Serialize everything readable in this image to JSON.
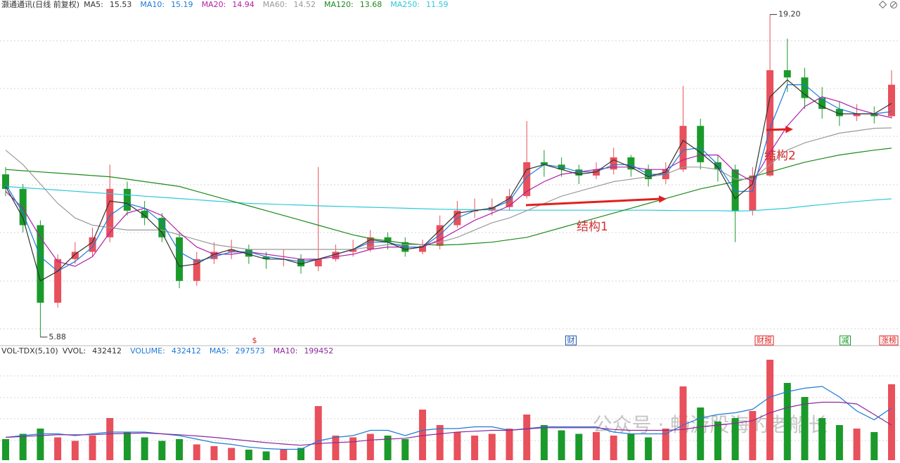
{
  "chart_data": {
    "type": "candlestick",
    "title": "灏通通讯(日线 前复权)",
    "ylim": [
      5.7,
      19.45
    ],
    "up_color": "#e8505b",
    "down_color": "#1a9a2a",
    "open": [
      12.6,
      12.0,
      10.5,
      7.3,
      9.1,
      9.4,
      10.0,
      12.0,
      11.1,
      10.8,
      10.0,
      8.2,
      9.1,
      9.4,
      9.5,
      9.2,
      9.1,
      9.1,
      8.8,
      9.1,
      9.4,
      9.5,
      10.0,
      9.8,
      9.4,
      9.65,
      10.5,
      11.1,
      11.1,
      11.25,
      11.7,
      13.1,
      13.0,
      12.8,
      12.55,
      12.8,
      13.3,
      12.8,
      12.4,
      12.8,
      14.6,
      13.1,
      12.8,
      11.1,
      12.55,
      16.9,
      16.6,
      15.75,
      15.3,
      15.0,
      15.1,
      15.0
    ],
    "high": [
      12.9,
      12.2,
      10.7,
      9.3,
      9.8,
      10.4,
      13.0,
      12.3,
      11.5,
      11.0,
      10.2,
      9.4,
      9.8,
      9.9,
      9.7,
      9.4,
      9.5,
      9.3,
      12.9,
      9.7,
      9.9,
      10.3,
      10.2,
      10.0,
      9.9,
      10.9,
      11.5,
      11.6,
      11.6,
      12.0,
      14.8,
      13.6,
      13.3,
      13.0,
      13.1,
      13.7,
      13.4,
      13.0,
      13.1,
      16.25,
      14.9,
      13.4,
      13.0,
      12.9,
      19.2,
      18.2,
      17.0,
      16.2,
      15.6,
      15.5,
      15.4,
      16.9
    ],
    "low": [
      11.7,
      10.2,
      5.88,
      7.1,
      8.9,
      9.2,
      9.8,
      10.9,
      10.5,
      9.8,
      7.9,
      8.0,
      8.9,
      9.1,
      8.9,
      8.7,
      8.8,
      8.5,
      8.6,
      9.0,
      9.2,
      9.4,
      9.5,
      9.2,
      9.3,
      9.5,
      10.4,
      10.8,
      10.9,
      11.1,
      11.6,
      12.5,
      12.5,
      12.2,
      12.4,
      12.6,
      12.5,
      12.1,
      12.2,
      12.7,
      12.8,
      12.3,
      9.8,
      10.9,
      12.5,
      16.0,
      15.3,
      14.9,
      14.6,
      14.8,
      14.7,
      14.9
    ],
    "close": [
      12.0,
      10.5,
      7.3,
      9.1,
      9.4,
      10.0,
      12.0,
      11.1,
      10.8,
      10.0,
      8.2,
      9.1,
      9.4,
      9.5,
      9.2,
      9.1,
      9.1,
      8.8,
      9.1,
      9.4,
      9.5,
      10.0,
      9.8,
      9.4,
      9.65,
      10.5,
      11.1,
      11.1,
      11.25,
      11.7,
      13.1,
      13.0,
      12.8,
      12.55,
      12.8,
      13.3,
      12.8,
      12.4,
      12.8,
      14.6,
      13.1,
      12.8,
      11.1,
      12.55,
      16.9,
      16.6,
      15.75,
      15.3,
      15.0,
      15.1,
      15.0,
      16.3
    ],
    "series": [
      {
        "name": "MA5",
        "color": "#333333",
        "values": [
          12.1,
          10.8,
          8.2,
          8.6,
          9.3,
          9.8,
          11.5,
          11.4,
          10.9,
          10.2,
          8.8,
          8.9,
          9.3,
          9.5,
          9.3,
          9.1,
          9.1,
          8.9,
          9.1,
          9.3,
          9.5,
          9.9,
          9.8,
          9.5,
          9.6,
          10.3,
          11.0,
          11.1,
          11.2,
          11.6,
          12.8,
          13.0,
          12.8,
          12.6,
          12.7,
          13.2,
          12.9,
          12.5,
          12.7,
          14.0,
          13.5,
          12.9,
          11.6,
          12.2,
          15.8,
          16.5,
          15.9,
          15.4,
          15.1,
          15.1,
          15.1,
          15.53
        ]
      },
      {
        "name": "MA10",
        "color": "#1e7ad6",
        "values": [
          12.2,
          11.0,
          9.2,
          8.6,
          9.0,
          9.6,
          10.9,
          11.4,
          11.2,
          10.6,
          9.4,
          9.0,
          9.2,
          9.4,
          9.4,
          9.2,
          9.1,
          9.0,
          9.1,
          9.3,
          9.5,
          9.8,
          9.8,
          9.6,
          9.6,
          10.1,
          10.8,
          11.1,
          11.2,
          11.5,
          12.5,
          13.0,
          12.9,
          12.7,
          12.7,
          13.0,
          13.0,
          12.6,
          12.6,
          13.6,
          13.7,
          13.0,
          11.9,
          11.9,
          14.5,
          16.3,
          16.3,
          15.7,
          15.3,
          15.1,
          15.1,
          15.19
        ]
      },
      {
        "name": "MA20",
        "color": "#b01fa8",
        "values": [
          11.9,
          11.2,
          10.0,
          9.0,
          8.8,
          9.2,
          10.2,
          11.0,
          11.2,
          10.9,
          10.2,
          9.6,
          9.3,
          9.3,
          9.4,
          9.3,
          9.2,
          9.1,
          9.1,
          9.2,
          9.3,
          9.5,
          9.6,
          9.6,
          9.6,
          9.9,
          10.3,
          10.7,
          11.0,
          11.3,
          11.9,
          12.3,
          12.6,
          12.7,
          12.8,
          12.9,
          12.9,
          12.8,
          12.8,
          13.2,
          13.4,
          13.4,
          12.7,
          12.3,
          13.5,
          14.6,
          15.4,
          15.8,
          15.6,
          15.3,
          15.1,
          14.94
        ]
      },
      {
        "name": "MA60",
        "color": "#9a9a9a",
        "values": [
          13.6,
          13.0,
          12.2,
          11.4,
          10.8,
          10.5,
          10.4,
          10.3,
          10.3,
          10.3,
          10.1,
          9.9,
          9.7,
          9.6,
          9.5,
          9.5,
          9.5,
          9.5,
          9.5,
          9.5,
          9.5,
          9.6,
          9.7,
          9.7,
          9.7,
          9.8,
          10.0,
          10.3,
          10.6,
          10.8,
          11.1,
          11.4,
          11.7,
          11.9,
          12.1,
          12.3,
          12.4,
          12.5,
          12.6,
          12.9,
          12.9,
          12.8,
          12.4,
          12.4,
          13.0,
          13.6,
          13.9,
          14.1,
          14.3,
          14.4,
          14.5,
          14.52
        ]
      },
      {
        "name": "MA120",
        "color": "#1a8a1a",
        "values": [
          12.8,
          12.75,
          12.7,
          12.65,
          12.6,
          12.55,
          12.5,
          12.4,
          12.3,
          12.2,
          12.1,
          11.9,
          11.7,
          11.5,
          11.3,
          11.1,
          10.9,
          10.7,
          10.5,
          10.3,
          10.1,
          9.95,
          9.85,
          9.75,
          9.7,
          9.68,
          9.7,
          9.75,
          9.8,
          9.9,
          10.0,
          10.2,
          10.4,
          10.6,
          10.8,
          11.0,
          11.2,
          11.4,
          11.6,
          11.8,
          12.0,
          12.15,
          12.3,
          12.5,
          12.7,
          12.9,
          13.1,
          13.25,
          13.4,
          13.5,
          13.6,
          13.68
        ]
      },
      {
        "name": "MA250",
        "color": "#2ec8d8",
        "values": [
          12.1,
          12.05,
          12.0,
          11.95,
          11.9,
          11.85,
          11.8,
          11.75,
          11.7,
          11.65,
          11.6,
          11.55,
          11.5,
          11.45,
          11.4,
          11.38,
          11.35,
          11.33,
          11.3,
          11.28,
          11.26,
          11.24,
          11.22,
          11.2,
          11.18,
          11.16,
          11.15,
          11.14,
          11.13,
          11.12,
          11.12,
          11.12,
          11.12,
          11.12,
          11.12,
          11.12,
          11.12,
          11.12,
          11.11,
          11.1,
          11.1,
          11.1,
          11.08,
          11.1,
          11.15,
          11.2,
          11.28,
          11.35,
          11.42,
          11.48,
          11.54,
          11.59
        ]
      }
    ],
    "annotations": [
      {
        "value": 19.2,
        "label": "19.20"
      },
      {
        "value": 5.88,
        "label": "5.88"
      }
    ],
    "notes": [
      "结构1",
      "结构2"
    ],
    "markers": [
      "$",
      "财",
      "财报",
      "减",
      "涨榜"
    ],
    "volume": {
      "type": "bar",
      "title": "VOL-TDX(5,10)",
      "ylim": [
        0,
        600000
      ],
      "value_names": [
        "VVOL",
        "VOLUME"
      ],
      "values": [
        120000,
        150000,
        180000,
        130000,
        110000,
        140000,
        240000,
        160000,
        130000,
        110000,
        120000,
        90000,
        80000,
        70000,
        60000,
        50000,
        60000,
        70000,
        308000,
        140000,
        130000,
        150000,
        140000,
        120000,
        288000,
        200000,
        160000,
        140000,
        150000,
        180000,
        260000,
        200000,
        170000,
        150000,
        160000,
        140000,
        150000,
        130000,
        180000,
        420000,
        300000,
        220000,
        240000,
        280000,
        572000,
        440000,
        360000,
        240000,
        200000,
        180000,
        160000,
        432412
      ],
      "series": [
        {
          "name": "MA5",
          "color": "#1e7ad6",
          "values": [
            130000,
            140000,
            150000,
            150000,
            140000,
            150000,
            160000,
            160000,
            160000,
            150000,
            140000,
            120000,
            100000,
            90000,
            75000,
            66000,
            62000,
            62000,
            110000,
            130000,
            140000,
            170000,
            170000,
            140000,
            170000,
            180000,
            180000,
            190000,
            190000,
            170000,
            180000,
            190000,
            190000,
            190000,
            190000,
            160000,
            150000,
            150000,
            150000,
            200000,
            240000,
            260000,
            270000,
            290000,
            360000,
            390000,
            410000,
            420000,
            360000,
            280000,
            230000,
            297573
          ]
        },
        {
          "name": "MA10",
          "color": "#8a2a9a",
          "values": [
            130000,
            135000,
            140000,
            145000,
            145000,
            145000,
            150000,
            152000,
            155000,
            150000,
            145000,
            138000,
            130000,
            120000,
            110000,
            100000,
            92000,
            85000,
            95000,
            100000,
            105000,
            115000,
            120000,
            125000,
            140000,
            150000,
            160000,
            165000,
            170000,
            170000,
            178000,
            185000,
            185000,
            185000,
            185000,
            175000,
            170000,
            170000,
            170000,
            175000,
            190000,
            200000,
            210000,
            225000,
            270000,
            300000,
            320000,
            330000,
            330000,
            320000,
            260000,
            199452
          ]
        }
      ]
    }
  },
  "watermark": "公众号 · 畅游股海的老船长"
}
